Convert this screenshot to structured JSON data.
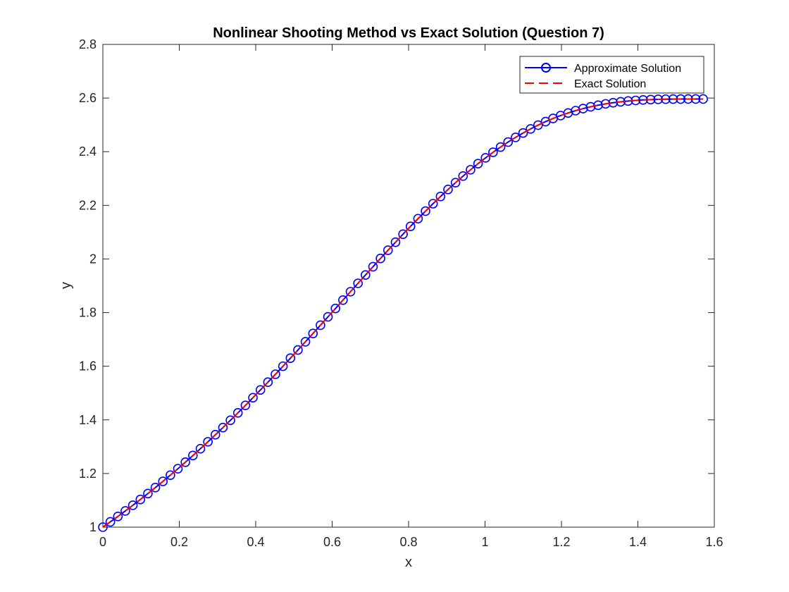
{
  "chart_data": {
    "type": "line",
    "title": "Nonlinear Shooting Method vs Exact Solution (Question 7)",
    "xlabel": "x",
    "ylabel": "y",
    "xlim": [
      0,
      1.6
    ],
    "ylim": [
      1,
      2.8
    ],
    "xticks": [
      0,
      0.2,
      0.4,
      0.6,
      0.8,
      1,
      1.2,
      1.4,
      1.6
    ],
    "xtick_labels": [
      "0",
      "0.2",
      "0.4",
      "0.6",
      "0.8",
      "1",
      "1.2",
      "1.4",
      "1.6"
    ],
    "yticks": [
      1,
      1.2,
      1.4,
      1.6,
      1.8,
      2,
      2.2,
      2.4,
      2.6,
      2.8
    ],
    "ytick_labels": [
      "1",
      "1.2",
      "1.4",
      "1.6",
      "1.8",
      "2",
      "2.2",
      "2.4",
      "2.6",
      "2.8"
    ],
    "grid": false,
    "legend_position": "top-right",
    "colors": {
      "approx": "#0000ff",
      "exact": "#ff0000",
      "axis": "#262626"
    },
    "series": [
      {
        "name": "Approximate Solution",
        "style": "solid-circle-markers",
        "color": "#0000ff",
        "x": [
          0,
          0.0196,
          0.0393,
          0.0589,
          0.0785,
          0.0982,
          0.1178,
          0.1374,
          0.1571,
          0.1767,
          0.1963,
          0.216,
          0.2356,
          0.2553,
          0.2749,
          0.2945,
          0.3142,
          0.3338,
          0.3534,
          0.3731,
          0.3927,
          0.4123,
          0.432,
          0.4516,
          0.4712,
          0.4909,
          0.5105,
          0.5301,
          0.5498,
          0.5694,
          0.589,
          0.6087,
          0.6283,
          0.648,
          0.6676,
          0.6872,
          0.7069,
          0.7265,
          0.7461,
          0.7658,
          0.7854,
          0.805,
          0.8247,
          0.8443,
          0.8639,
          0.8836,
          0.9032,
          0.9228,
          0.9425,
          0.9621,
          0.9817,
          1.0014,
          1.021,
          1.0407,
          1.0603,
          1.0799,
          1.0996,
          1.1192,
          1.1388,
          1.1585,
          1.1781,
          1.1977,
          1.2174,
          1.237,
          1.2566,
          1.2763,
          1.2959,
          1.3155,
          1.3352,
          1.3548,
          1.3744,
          1.3941,
          1.4137,
          1.4334,
          1.453,
          1.4726,
          1.4923,
          1.5119,
          1.5315,
          1.5512,
          1.5708
        ],
        "y": [
          1.0,
          1.0198,
          1.04,
          1.0606,
          1.0817,
          1.1032,
          1.1252,
          1.1477,
          1.1706,
          1.194,
          1.2179,
          1.2423,
          1.2672,
          1.2925,
          1.3183,
          1.3446,
          1.3713,
          1.3985,
          1.4262,
          1.4542,
          1.4826,
          1.5115,
          1.5407,
          1.5702,
          1.6001,
          1.6302,
          1.6606,
          1.6913,
          1.7221,
          1.7531,
          1.7843,
          1.8155,
          1.8467,
          1.878,
          1.9092,
          1.9403,
          1.9712,
          2.0019,
          2.0324,
          2.0625,
          2.0922,
          2.1215,
          2.1503,
          2.1785,
          2.2061,
          2.233,
          2.2591,
          2.2845,
          2.309,
          2.3326,
          2.3553,
          2.377,
          2.3977,
          2.4173,
          2.4359,
          2.4533,
          2.4697,
          2.4849,
          2.499,
          2.512,
          2.5238,
          2.5346,
          2.5443,
          2.553,
          2.5607,
          2.5674,
          2.5733,
          2.5783,
          2.5825,
          2.586,
          2.5889,
          2.5911,
          2.5929,
          2.5942,
          2.5951,
          2.5957,
          2.5961,
          2.5963,
          2.5964,
          2.5964,
          2.5964
        ]
      },
      {
        "name": "Exact Solution",
        "style": "dashed",
        "color": "#ff0000",
        "same_x_y_as": "Approximate Solution"
      }
    ]
  }
}
